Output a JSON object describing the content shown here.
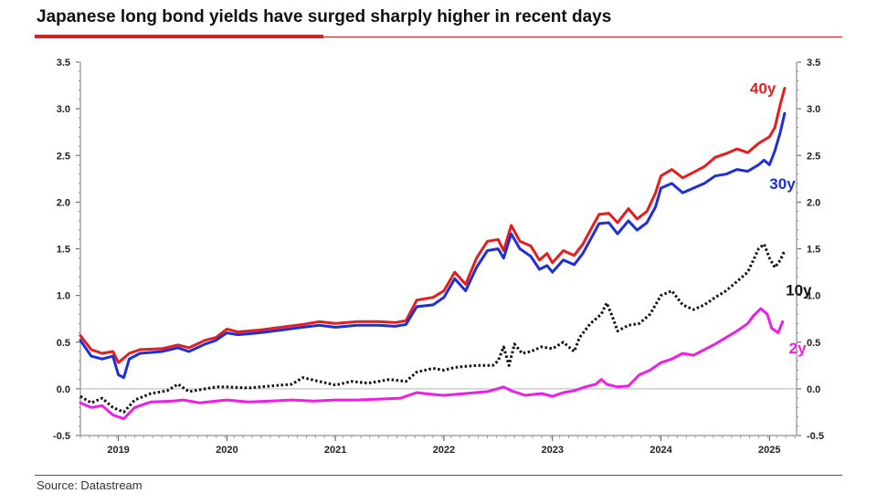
{
  "title": "Japanese long bond yields have surged sharply higher in recent days",
  "source": "Source: Datastream",
  "colors": {
    "y40": "#e81c1c",
    "y30": "#1f2fd8",
    "y10": "#111111",
    "y2": "#ee1ee8",
    "accent": "#d42020"
  },
  "chart_data": {
    "type": "line",
    "title": "Japanese long bond yields have surged sharply higher in recent days",
    "xlabel": "",
    "ylabel": "",
    "x_range": [
      2018.65,
      2025.25
    ],
    "ylim": [
      -0.5,
      3.5
    ],
    "yticks": [
      "3.5",
      "3.0",
      "2.5",
      "2.0",
      "1.5",
      "1.0",
      "0.5",
      "0.0",
      "-0.5"
    ],
    "ytick_values": [
      3.5,
      3.0,
      2.5,
      2.0,
      1.5,
      1.0,
      0.5,
      0.0,
      -0.5
    ],
    "xticks": [
      "2019",
      "2020",
      "2021",
      "2022",
      "2023",
      "2024",
      "2025"
    ],
    "xtick_values": [
      2019,
      2020,
      2021,
      2022,
      2023,
      2024,
      2025
    ],
    "zero_line": true,
    "dual_axis": true,
    "series": [
      {
        "name": "40y",
        "color": "#e81c1c",
        "style": "solid",
        "points": [
          [
            2018.65,
            0.57
          ],
          [
            2018.75,
            0.42
          ],
          [
            2018.85,
            0.38
          ],
          [
            2018.95,
            0.4
          ],
          [
            2019.0,
            0.28
          ],
          [
            2019.1,
            0.38
          ],
          [
            2019.2,
            0.42
          ],
          [
            2019.4,
            0.43
          ],
          [
            2019.55,
            0.47
          ],
          [
            2019.65,
            0.44
          ],
          [
            2019.8,
            0.52
          ],
          [
            2019.9,
            0.55
          ],
          [
            2020.0,
            0.64
          ],
          [
            2020.1,
            0.61
          ],
          [
            2020.3,
            0.63
          ],
          [
            2020.5,
            0.66
          ],
          [
            2020.7,
            0.69
          ],
          [
            2020.85,
            0.72
          ],
          [
            2021.0,
            0.7
          ],
          [
            2021.2,
            0.72
          ],
          [
            2021.4,
            0.72
          ],
          [
            2021.55,
            0.71
          ],
          [
            2021.65,
            0.73
          ],
          [
            2021.75,
            0.95
          ],
          [
            2021.9,
            0.98
          ],
          [
            2022.0,
            1.05
          ],
          [
            2022.1,
            1.25
          ],
          [
            2022.2,
            1.12
          ],
          [
            2022.3,
            1.4
          ],
          [
            2022.4,
            1.58
          ],
          [
            2022.5,
            1.6
          ],
          [
            2022.55,
            1.48
          ],
          [
            2022.62,
            1.75
          ],
          [
            2022.7,
            1.58
          ],
          [
            2022.8,
            1.53
          ],
          [
            2022.88,
            1.38
          ],
          [
            2022.95,
            1.45
          ],
          [
            2023.0,
            1.35
          ],
          [
            2023.1,
            1.48
          ],
          [
            2023.2,
            1.43
          ],
          [
            2023.28,
            1.55
          ],
          [
            2023.35,
            1.7
          ],
          [
            2023.43,
            1.87
          ],
          [
            2023.52,
            1.88
          ],
          [
            2023.6,
            1.78
          ],
          [
            2023.7,
            1.93
          ],
          [
            2023.78,
            1.82
          ],
          [
            2023.87,
            1.9
          ],
          [
            2023.95,
            2.1
          ],
          [
            2024.0,
            2.28
          ],
          [
            2024.1,
            2.35
          ],
          [
            2024.2,
            2.26
          ],
          [
            2024.3,
            2.32
          ],
          [
            2024.4,
            2.38
          ],
          [
            2024.5,
            2.48
          ],
          [
            2024.6,
            2.52
          ],
          [
            2024.7,
            2.57
          ],
          [
            2024.8,
            2.53
          ],
          [
            2024.9,
            2.63
          ],
          [
            2025.0,
            2.7
          ],
          [
            2025.05,
            2.8
          ],
          [
            2025.1,
            3.05
          ],
          [
            2025.14,
            3.22
          ]
        ]
      },
      {
        "name": "30y",
        "color": "#1f2fd8",
        "style": "solid",
        "points": [
          [
            2018.65,
            0.52
          ],
          [
            2018.75,
            0.35
          ],
          [
            2018.85,
            0.32
          ],
          [
            2018.95,
            0.35
          ],
          [
            2019.0,
            0.15
          ],
          [
            2019.05,
            0.12
          ],
          [
            2019.1,
            0.32
          ],
          [
            2019.2,
            0.38
          ],
          [
            2019.4,
            0.4
          ],
          [
            2019.55,
            0.44
          ],
          [
            2019.65,
            0.4
          ],
          [
            2019.8,
            0.48
          ],
          [
            2019.9,
            0.52
          ],
          [
            2020.0,
            0.6
          ],
          [
            2020.1,
            0.58
          ],
          [
            2020.3,
            0.6
          ],
          [
            2020.5,
            0.63
          ],
          [
            2020.7,
            0.66
          ],
          [
            2020.85,
            0.68
          ],
          [
            2021.0,
            0.66
          ],
          [
            2021.2,
            0.68
          ],
          [
            2021.4,
            0.68
          ],
          [
            2021.55,
            0.67
          ],
          [
            2021.65,
            0.69
          ],
          [
            2021.75,
            0.88
          ],
          [
            2021.9,
            0.9
          ],
          [
            2022.0,
            0.98
          ],
          [
            2022.1,
            1.18
          ],
          [
            2022.2,
            1.05
          ],
          [
            2022.3,
            1.3
          ],
          [
            2022.4,
            1.48
          ],
          [
            2022.5,
            1.5
          ],
          [
            2022.55,
            1.4
          ],
          [
            2022.62,
            1.66
          ],
          [
            2022.7,
            1.5
          ],
          [
            2022.8,
            1.42
          ],
          [
            2022.88,
            1.28
          ],
          [
            2022.95,
            1.32
          ],
          [
            2023.0,
            1.25
          ],
          [
            2023.1,
            1.38
          ],
          [
            2023.2,
            1.33
          ],
          [
            2023.28,
            1.45
          ],
          [
            2023.35,
            1.6
          ],
          [
            2023.43,
            1.77
          ],
          [
            2023.52,
            1.78
          ],
          [
            2023.6,
            1.66
          ],
          [
            2023.7,
            1.8
          ],
          [
            2023.78,
            1.7
          ],
          [
            2023.87,
            1.78
          ],
          [
            2023.95,
            1.95
          ],
          [
            2024.0,
            2.15
          ],
          [
            2024.1,
            2.2
          ],
          [
            2024.2,
            2.1
          ],
          [
            2024.3,
            2.15
          ],
          [
            2024.4,
            2.2
          ],
          [
            2024.5,
            2.28
          ],
          [
            2024.6,
            2.3
          ],
          [
            2024.7,
            2.35
          ],
          [
            2024.8,
            2.33
          ],
          [
            2024.9,
            2.4
          ],
          [
            2024.95,
            2.45
          ],
          [
            2025.0,
            2.4
          ],
          [
            2025.05,
            2.55
          ],
          [
            2025.1,
            2.75
          ],
          [
            2025.14,
            2.95
          ]
        ]
      },
      {
        "name": "10y",
        "color": "#111111",
        "style": "dotted",
        "points": [
          [
            2018.65,
            -0.08
          ],
          [
            2018.75,
            -0.15
          ],
          [
            2018.85,
            -0.1
          ],
          [
            2018.95,
            -0.2
          ],
          [
            2019.05,
            -0.25
          ],
          [
            2019.15,
            -0.12
          ],
          [
            2019.3,
            -0.05
          ],
          [
            2019.45,
            -0.02
          ],
          [
            2019.55,
            0.05
          ],
          [
            2019.65,
            -0.03
          ],
          [
            2019.8,
            0.0
          ],
          [
            2019.9,
            0.02
          ],
          [
            2020.0,
            0.02
          ],
          [
            2020.2,
            0.01
          ],
          [
            2020.4,
            0.03
          ],
          [
            2020.6,
            0.05
          ],
          [
            2020.7,
            0.12
          ],
          [
            2020.85,
            0.08
          ],
          [
            2021.0,
            0.04
          ],
          [
            2021.15,
            0.08
          ],
          [
            2021.3,
            0.06
          ],
          [
            2021.5,
            0.1
          ],
          [
            2021.65,
            0.08
          ],
          [
            2021.75,
            0.18
          ],
          [
            2021.9,
            0.22
          ],
          [
            2022.0,
            0.2
          ],
          [
            2022.1,
            0.23
          ],
          [
            2022.2,
            0.24
          ],
          [
            2022.3,
            0.25
          ],
          [
            2022.45,
            0.25
          ],
          [
            2022.5,
            0.3
          ],
          [
            2022.55,
            0.45
          ],
          [
            2022.6,
            0.25
          ],
          [
            2022.65,
            0.48
          ],
          [
            2022.72,
            0.38
          ],
          [
            2022.8,
            0.4
          ],
          [
            2022.9,
            0.45
          ],
          [
            2023.0,
            0.43
          ],
          [
            2023.1,
            0.5
          ],
          [
            2023.2,
            0.4
          ],
          [
            2023.25,
            0.55
          ],
          [
            2023.35,
            0.7
          ],
          [
            2023.45,
            0.8
          ],
          [
            2023.5,
            0.92
          ],
          [
            2023.55,
            0.78
          ],
          [
            2023.6,
            0.62
          ],
          [
            2023.7,
            0.68
          ],
          [
            2023.8,
            0.7
          ],
          [
            2023.9,
            0.8
          ],
          [
            2024.0,
            1.0
          ],
          [
            2024.1,
            1.05
          ],
          [
            2024.2,
            0.9
          ],
          [
            2024.3,
            0.85
          ],
          [
            2024.4,
            0.9
          ],
          [
            2024.5,
            0.98
          ],
          [
            2024.6,
            1.05
          ],
          [
            2024.7,
            1.15
          ],
          [
            2024.8,
            1.25
          ],
          [
            2024.9,
            1.5
          ],
          [
            2024.95,
            1.55
          ],
          [
            2025.0,
            1.4
          ],
          [
            2025.05,
            1.3
          ],
          [
            2025.1,
            1.38
          ],
          [
            2025.14,
            1.48
          ]
        ]
      },
      {
        "name": "2y",
        "color": "#ee1ee8",
        "style": "solid",
        "points": [
          [
            2018.65,
            -0.15
          ],
          [
            2018.75,
            -0.2
          ],
          [
            2018.85,
            -0.18
          ],
          [
            2018.95,
            -0.28
          ],
          [
            2019.05,
            -0.32
          ],
          [
            2019.15,
            -0.2
          ],
          [
            2019.3,
            -0.14
          ],
          [
            2019.5,
            -0.13
          ],
          [
            2019.6,
            -0.12
          ],
          [
            2019.75,
            -0.15
          ],
          [
            2019.9,
            -0.13
          ],
          [
            2020.0,
            -0.12
          ],
          [
            2020.2,
            -0.14
          ],
          [
            2020.4,
            -0.13
          ],
          [
            2020.6,
            -0.12
          ],
          [
            2020.8,
            -0.13
          ],
          [
            2021.0,
            -0.12
          ],
          [
            2021.2,
            -0.12
          ],
          [
            2021.4,
            -0.11
          ],
          [
            2021.6,
            -0.1
          ],
          [
            2021.75,
            -0.04
          ],
          [
            2021.9,
            -0.06
          ],
          [
            2022.0,
            -0.07
          ],
          [
            2022.2,
            -0.05
          ],
          [
            2022.4,
            -0.03
          ],
          [
            2022.55,
            0.02
          ],
          [
            2022.62,
            -0.02
          ],
          [
            2022.75,
            -0.07
          ],
          [
            2022.9,
            -0.05
          ],
          [
            2023.0,
            -0.08
          ],
          [
            2023.1,
            -0.04
          ],
          [
            2023.2,
            -0.02
          ],
          [
            2023.3,
            0.02
          ],
          [
            2023.4,
            0.05
          ],
          [
            2023.45,
            0.1
          ],
          [
            2023.5,
            0.05
          ],
          [
            2023.6,
            0.02
          ],
          [
            2023.7,
            0.03
          ],
          [
            2023.8,
            0.15
          ],
          [
            2023.9,
            0.2
          ],
          [
            2024.0,
            0.28
          ],
          [
            2024.1,
            0.32
          ],
          [
            2024.2,
            0.38
          ],
          [
            2024.3,
            0.36
          ],
          [
            2024.4,
            0.42
          ],
          [
            2024.5,
            0.48
          ],
          [
            2024.6,
            0.55
          ],
          [
            2024.7,
            0.62
          ],
          [
            2024.8,
            0.7
          ],
          [
            2024.85,
            0.78
          ],
          [
            2024.92,
            0.86
          ],
          [
            2024.98,
            0.8
          ],
          [
            2025.02,
            0.65
          ],
          [
            2025.08,
            0.6
          ],
          [
            2025.12,
            0.72
          ]
        ]
      }
    ],
    "series_labels": [
      {
        "name": "40y",
        "text": "40y",
        "color": "#e81c1c",
        "anchor": [
          2024.82,
          3.22
        ]
      },
      {
        "name": "30y",
        "text": "30y",
        "color": "#1f2fd8",
        "anchor": [
          2025.0,
          2.2
        ]
      },
      {
        "name": "10y",
        "text": "10y",
        "color": "#111111",
        "anchor": [
          2025.15,
          1.06
        ]
      },
      {
        "name": "2y",
        "text": "2y",
        "color": "#ee1ee8",
        "anchor": [
          2025.18,
          0.44
        ]
      }
    ]
  }
}
